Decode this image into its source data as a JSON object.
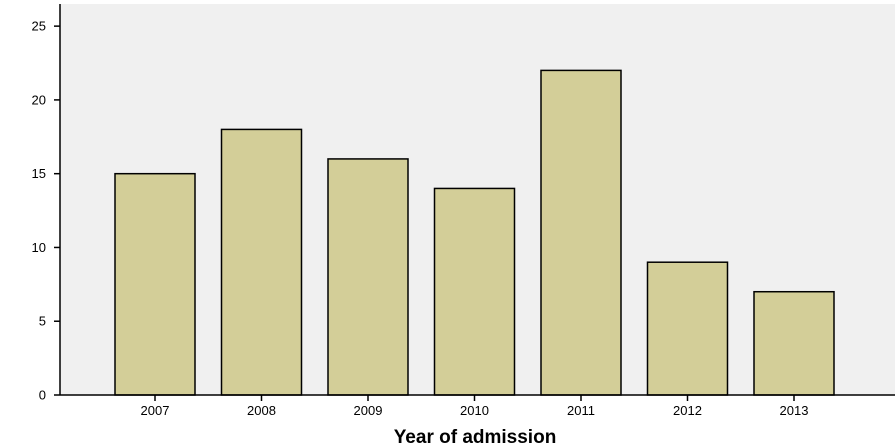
{
  "chart_data": {
    "type": "bar",
    "categories": [
      "2007",
      "2008",
      "2009",
      "2010",
      "2011",
      "2012",
      "2013"
    ],
    "values": [
      15,
      18,
      16,
      14,
      22,
      9,
      7
    ],
    "title": "",
    "xlabel": "Year of admission",
    "ylabel": "",
    "ylim": [
      0,
      26.5
    ],
    "yticks": [
      0,
      5,
      10,
      15,
      20,
      25
    ],
    "grid": false,
    "colors": {
      "plot_background": "#f0f0f0",
      "bar_fill": "#d3ce98",
      "bar_stroke": "#000000"
    }
  }
}
